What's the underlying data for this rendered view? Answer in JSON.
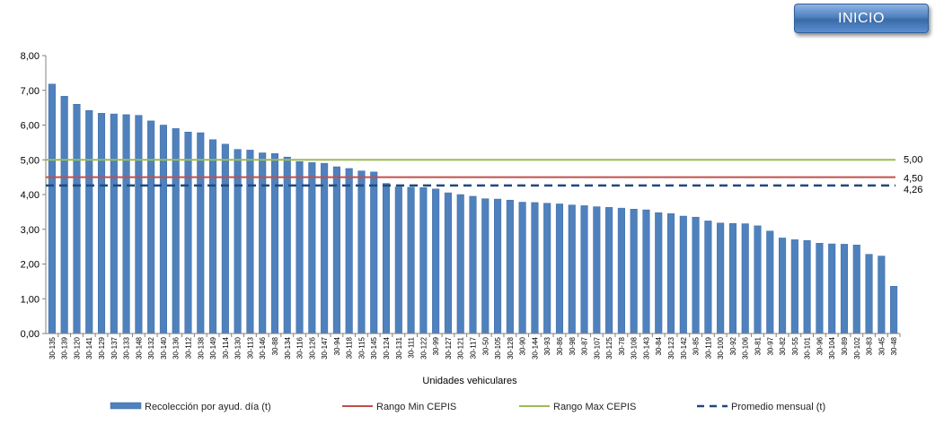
{
  "button": {
    "label": "INICIO"
  },
  "colors": {
    "bar": "#4f81bd",
    "bar_edge": "#3a6aa8",
    "min": "#c0504d",
    "max": "#9bbb59",
    "avg": "#1f497d"
  },
  "chart_data": {
    "type": "bar",
    "xlabel": "Unidades vehiculares",
    "ylabel": "",
    "ylim": [
      0,
      8
    ],
    "yticks": [
      "0,00",
      "1,00",
      "2,00",
      "3,00",
      "4,00",
      "5,00",
      "6,00",
      "7,00",
      "8,00"
    ],
    "categories": [
      "30-135",
      "30-139",
      "30-120",
      "30-141",
      "30-129",
      "30-137",
      "30-133",
      "30-148",
      "30-132",
      "30-140",
      "30-136",
      "30-112",
      "30-138",
      "30-149",
      "30-114",
      "30-130",
      "30-113",
      "30-146",
      "30-88",
      "30-134",
      "30-116",
      "30-126",
      "30-147",
      "30-94",
      "30-118",
      "30-115",
      "30-145",
      "30-124",
      "30-131",
      "30-111",
      "30-122",
      "30-99",
      "30-127",
      "30-121",
      "30-117",
      "30-50",
      "30-105",
      "30-128",
      "30-90",
      "30-144",
      "30-93",
      "30-86",
      "30-98",
      "30-87",
      "30-107",
      "30-125",
      "30-78",
      "30-108",
      "30-143",
      "30-84",
      "30-123",
      "30-142",
      "30-85",
      "30-119",
      "30-100",
      "30-92",
      "30-106",
      "30-81",
      "30-97",
      "30-82",
      "30-55",
      "30-101",
      "30-96",
      "30-104",
      "30-89",
      "30-102",
      "30-83",
      "30-45",
      "30-48"
    ],
    "series": [
      {
        "name": "Recolección por ayud. día (t)",
        "type": "bar",
        "values": [
          7.18,
          6.83,
          6.6,
          6.42,
          6.34,
          6.32,
          6.3,
          6.28,
          6.12,
          6.0,
          5.9,
          5.8,
          5.78,
          5.58,
          5.45,
          5.3,
          5.28,
          5.2,
          5.18,
          5.08,
          4.95,
          4.92,
          4.9,
          4.8,
          4.75,
          4.68,
          4.65,
          4.32,
          4.22,
          4.21,
          4.2,
          4.16,
          4.05,
          4.0,
          3.95,
          3.88,
          3.87,
          3.84,
          3.78,
          3.77,
          3.75,
          3.73,
          3.7,
          3.68,
          3.65,
          3.63,
          3.61,
          3.58,
          3.56,
          3.48,
          3.45,
          3.38,
          3.35,
          3.24,
          3.18,
          3.17,
          3.16,
          3.1,
          2.95,
          2.75,
          2.7,
          2.68,
          2.6,
          2.58,
          2.57,
          2.55,
          2.28,
          2.23,
          1.36
        ]
      },
      {
        "name": "Rango Min CEPIS",
        "type": "line",
        "value": 4.5,
        "label": "4,50"
      },
      {
        "name": "Rango Max CEPIS",
        "type": "line",
        "value": 5.0,
        "label": "5,00"
      },
      {
        "name": "Promedio mensual (t)",
        "type": "dashed-line",
        "value": 4.26,
        "label": "4,26"
      }
    ],
    "grid": false,
    "legend": "bottom"
  }
}
